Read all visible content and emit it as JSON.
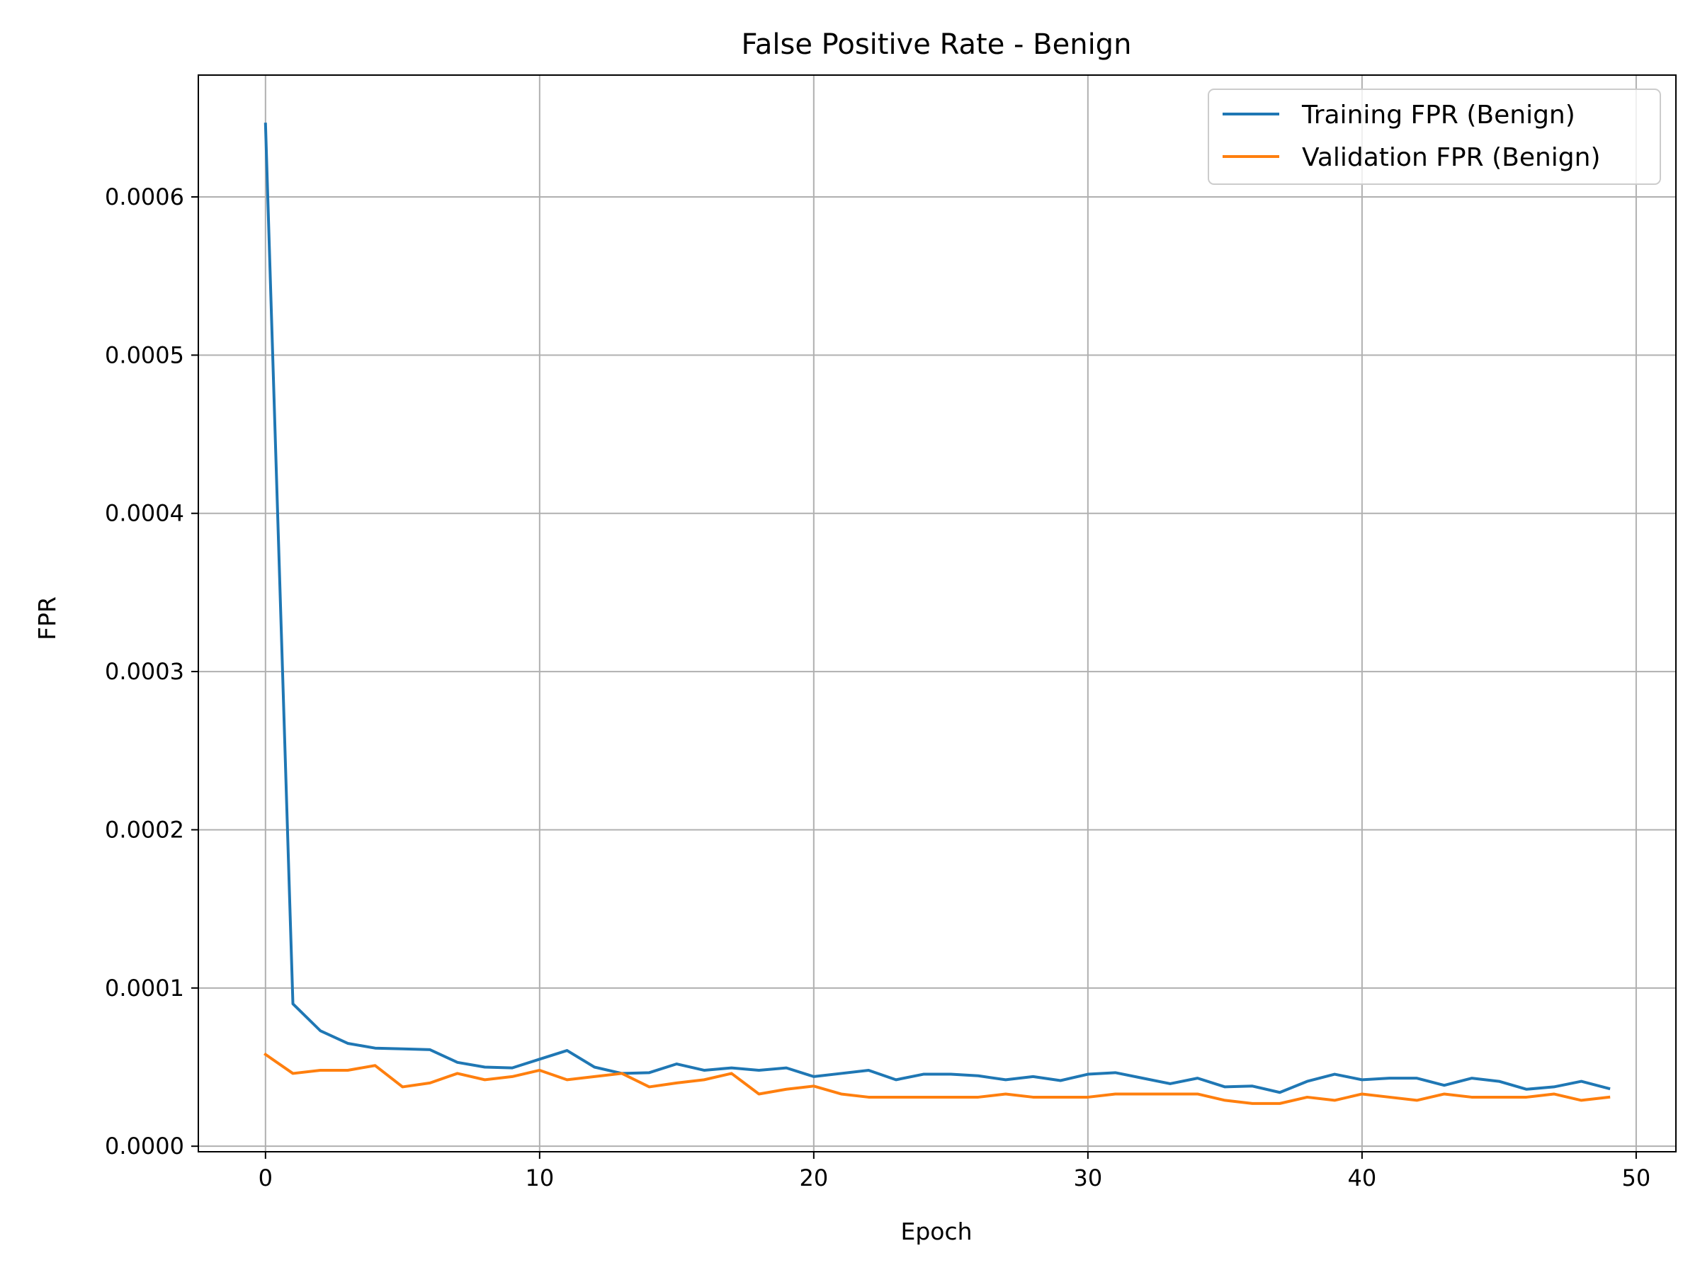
{
  "chart_data": {
    "type": "line",
    "title": "False Positive Rate - Benign",
    "xlabel": "Epoch",
    "ylabel": "FPR",
    "xlim": [
      -2.45,
      51.45
    ],
    "ylim": [
      -3.5e-06,
      0.000677
    ],
    "xticks": [
      0,
      10,
      20,
      30,
      40,
      50
    ],
    "xtick_labels": [
      "0",
      "10",
      "20",
      "30",
      "40",
      "50"
    ],
    "yticks": [
      0.0,
      0.0001,
      0.0002,
      0.0003,
      0.0004,
      0.0005,
      0.0006
    ],
    "ytick_labels": [
      "0.0000",
      "0.0001",
      "0.0002",
      "0.0003",
      "0.0004",
      "0.0005",
      "0.0006"
    ],
    "grid": true,
    "legend_position": "top-right",
    "x": [
      0,
      1,
      2,
      3,
      4,
      5,
      6,
      7,
      8,
      9,
      10,
      11,
      12,
      13,
      14,
      15,
      16,
      17,
      18,
      19,
      20,
      21,
      22,
      23,
      24,
      25,
      26,
      27,
      28,
      29,
      30,
      31,
      32,
      33,
      34,
      35,
      36,
      37,
      38,
      39,
      40,
      41,
      42,
      43,
      44,
      45,
      46,
      47,
      48,
      49
    ],
    "series": [
      {
        "name": "Training FPR (Benign)",
        "color": "#1f77b4",
        "values": [
          0.000646,
          9e-05,
          7.3e-05,
          6.5e-05,
          6.2e-05,
          6.15e-05,
          6.1e-05,
          5.3e-05,
          5e-05,
          4.95e-05,
          5.5e-05,
          6.05e-05,
          5e-05,
          4.6e-05,
          4.65e-05,
          5.2e-05,
          4.8e-05,
          4.95e-05,
          4.8e-05,
          4.95e-05,
          4.4e-05,
          4.6e-05,
          4.8e-05,
          4.2e-05,
          4.55e-05,
          4.55e-05,
          4.45e-05,
          4.2e-05,
          4.4e-05,
          4.15e-05,
          4.55e-05,
          4.65e-05,
          4.3e-05,
          3.95e-05,
          4.3e-05,
          3.75e-05,
          3.8e-05,
          3.4e-05,
          4.1e-05,
          4.55e-05,
          4.2e-05,
          4.3e-05,
          4.3e-05,
          3.85e-05,
          4.3e-05,
          4.1e-05,
          3.6e-05,
          3.75e-05,
          4.1e-05,
          3.65e-05
        ]
      },
      {
        "name": "Validation FPR (Benign)",
        "color": "#ff7f0e",
        "values": [
          5.8e-05,
          4.6e-05,
          4.8e-05,
          4.8e-05,
          5.1e-05,
          3.75e-05,
          4e-05,
          4.6e-05,
          4.2e-05,
          4.4e-05,
          4.8e-05,
          4.2e-05,
          4.4e-05,
          4.6e-05,
          3.75e-05,
          4e-05,
          4.2e-05,
          4.6e-05,
          3.3e-05,
          3.6e-05,
          3.8e-05,
          3.3e-05,
          3.1e-05,
          3.1e-05,
          3.1e-05,
          3.1e-05,
          3.1e-05,
          3.3e-05,
          3.1e-05,
          3.1e-05,
          3.1e-05,
          3.3e-05,
          3.3e-05,
          3.3e-05,
          3.3e-05,
          2.9e-05,
          2.7e-05,
          2.7e-05,
          3.1e-05,
          2.9e-05,
          3.3e-05,
          3.1e-05,
          2.9e-05,
          3.3e-05,
          3.1e-05,
          3.1e-05,
          3.1e-05,
          3.3e-05,
          2.9e-05,
          3.1e-05
        ]
      }
    ]
  }
}
